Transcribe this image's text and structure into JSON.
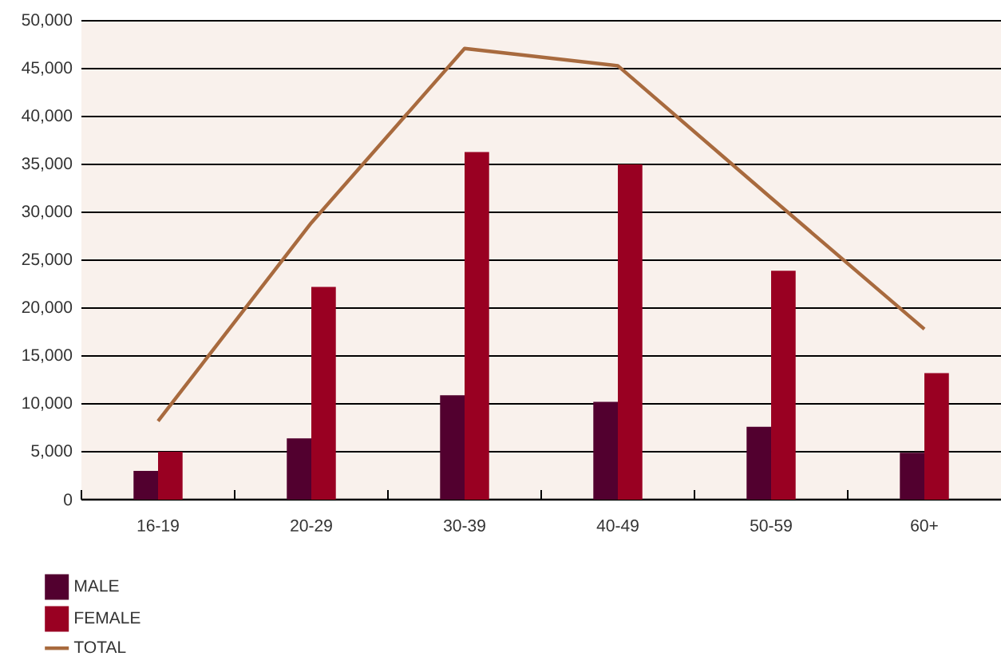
{
  "chart_data": {
    "type": "bar",
    "categories": [
      "16-19",
      "20-29",
      "30-39",
      "40-49",
      "50-59",
      "60+"
    ],
    "series": [
      {
        "name": "MALE",
        "color": "#52002f",
        "values": [
          3000,
          6400,
          10900,
          10200,
          7600,
          4900
        ]
      },
      {
        "name": "FEMALE",
        "color": "#990022",
        "values": [
          5000,
          22200,
          36300,
          35000,
          23900,
          13200
        ]
      },
      {
        "name": "TOTAL",
        "type": "line",
        "color": "#a86a3e",
        "values": [
          8200,
          28900,
          47100,
          45300,
          31500,
          17800
        ]
      }
    ],
    "ylim": [
      0,
      50000
    ],
    "yticks": [
      0,
      {
        "value": 5000,
        "label": "5,000"
      },
      {
        "value": 10000,
        "label": "10,000"
      },
      {
        "value": 15000,
        "label": "15,000"
      },
      {
        "value": 20000,
        "label": "20,000"
      },
      {
        "value": 25000,
        "label": "25,000"
      },
      {
        "value": 30000,
        "label": "30,000"
      },
      {
        "value": 35000,
        "label": "35,000"
      },
      {
        "value": 40000,
        "label": "40,000"
      },
      {
        "value": 45000,
        "label": "45,000"
      },
      {
        "value": 50000,
        "label": "50,000"
      }
    ],
    "grid": "y",
    "legend": "bottom left"
  }
}
